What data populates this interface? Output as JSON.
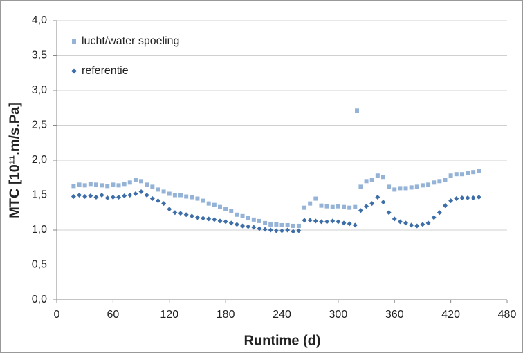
{
  "chart_data": {
    "type": "scatter",
    "x_label": "Runtime (d)",
    "y_label": "MTC [10¹¹.m/s.Pa]",
    "x": [
      18,
      24,
      30,
      36,
      42,
      48,
      54,
      60,
      66,
      72,
      78,
      84,
      90,
      96,
      102,
      108,
      114,
      120,
      126,
      132,
      138,
      144,
      150,
      156,
      162,
      168,
      174,
      180,
      186,
      192,
      198,
      204,
      210,
      216,
      222,
      228,
      234,
      240,
      246,
      252,
      258,
      264,
      270,
      276,
      282,
      288,
      294,
      300,
      306,
      312,
      318,
      320,
      324,
      330,
      336,
      342,
      348,
      354,
      360,
      366,
      372,
      378,
      384,
      390,
      396,
      402,
      408,
      414,
      420,
      426,
      432,
      438,
      444,
      450
    ],
    "series": [
      {
        "name": "lucht/water spoeling",
        "color": "#95b3d7",
        "marker": "square",
        "values": [
          1.63,
          1.65,
          1.64,
          1.66,
          1.65,
          1.64,
          1.63,
          1.65,
          1.64,
          1.66,
          1.68,
          1.72,
          1.7,
          1.65,
          1.62,
          1.58,
          1.55,
          1.52,
          1.5,
          1.5,
          1.48,
          1.47,
          1.45,
          1.42,
          1.38,
          1.36,
          1.33,
          1.3,
          1.27,
          1.22,
          1.2,
          1.17,
          1.15,
          1.13,
          1.1,
          1.08,
          1.08,
          1.07,
          1.07,
          1.06,
          1.06,
          1.32,
          1.38,
          1.45,
          1.35,
          1.34,
          1.33,
          1.34,
          1.33,
          1.32,
          1.33,
          2.71,
          1.62,
          1.7,
          1.72,
          1.78,
          1.76,
          1.62,
          1.58,
          1.6,
          1.6,
          1.61,
          1.62,
          1.64,
          1.65,
          1.68,
          1.7,
          1.72,
          1.78,
          1.8,
          1.8,
          1.82,
          1.83,
          1.85
        ]
      },
      {
        "name": "referentie",
        "color": "#3d6ea8",
        "marker": "diamond",
        "values": [
          1.48,
          1.5,
          1.48,
          1.49,
          1.47,
          1.5,
          1.46,
          1.47,
          1.47,
          1.49,
          1.5,
          1.52,
          1.55,
          1.5,
          1.45,
          1.42,
          1.38,
          1.3,
          1.25,
          1.24,
          1.22,
          1.2,
          1.18,
          1.17,
          1.16,
          1.15,
          1.13,
          1.12,
          1.1,
          1.08,
          1.06,
          1.05,
          1.04,
          1.02,
          1.01,
          1.0,
          0.99,
          0.99,
          1.0,
          0.98,
          0.99,
          1.14,
          1.14,
          1.13,
          1.12,
          1.12,
          1.13,
          1.12,
          1.1,
          1.09,
          1.07,
          null,
          1.28,
          1.34,
          1.38,
          1.47,
          1.4,
          1.25,
          1.16,
          1.12,
          1.1,
          1.07,
          1.06,
          1.08,
          1.1,
          1.18,
          1.25,
          1.35,
          1.42,
          1.45,
          1.46,
          1.46,
          1.46,
          1.47
        ]
      }
    ],
    "xlim": [
      0,
      480
    ],
    "xticks": [
      0,
      60,
      120,
      180,
      240,
      300,
      360,
      420,
      480
    ],
    "ylim": [
      0,
      4
    ],
    "yticks": [
      {
        "value": 0,
        "label": "0,0"
      },
      {
        "value": 0.5,
        "label": "0,5"
      },
      {
        "value": 1,
        "label": "1,0"
      },
      {
        "value": 1.5,
        "label": "1,5"
      },
      {
        "value": 2,
        "label": "2,0"
      },
      {
        "value": 2.5,
        "label": "2,5"
      },
      {
        "value": 3,
        "label": "3,0"
      },
      {
        "value": 3.5,
        "label": "3,5"
      },
      {
        "value": 4,
        "label": "4,0"
      }
    ],
    "grid": true,
    "legend": "top-left"
  }
}
